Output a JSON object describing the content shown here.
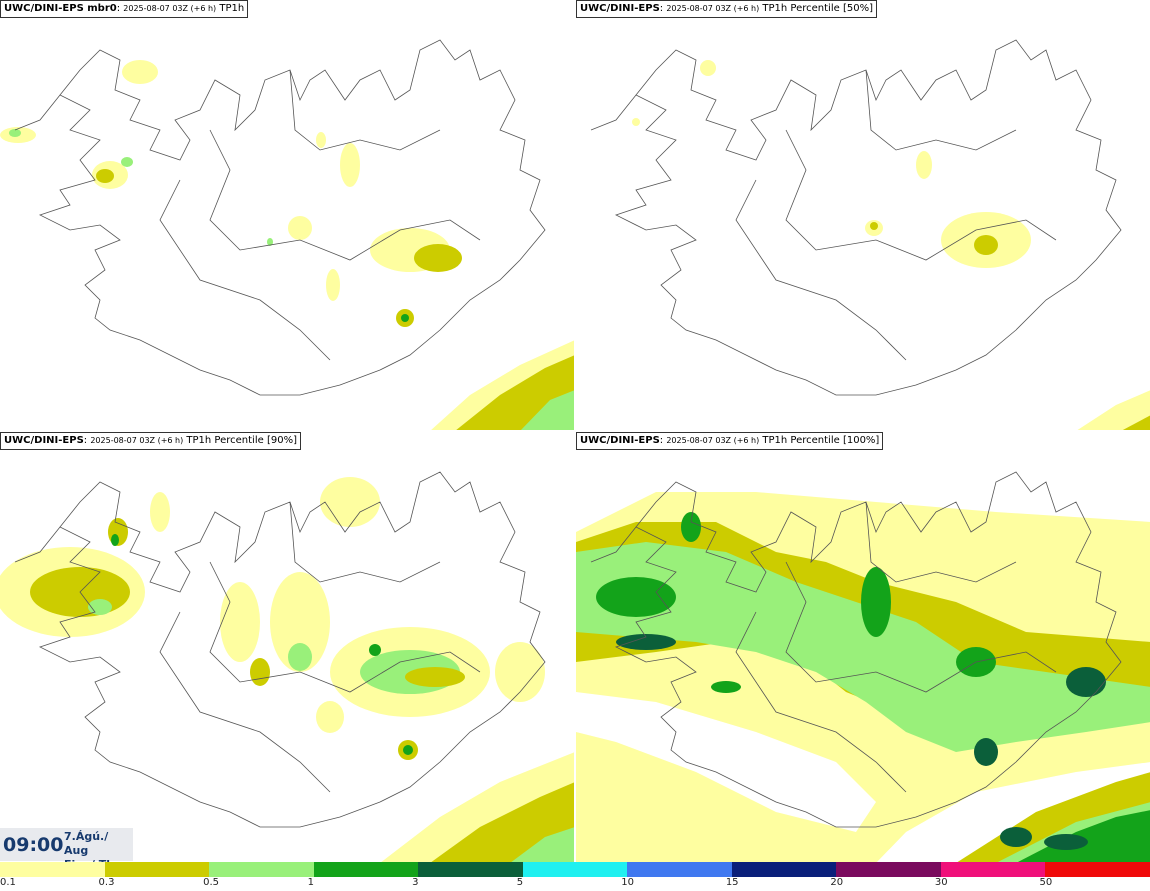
{
  "panels": [
    {
      "model": "UWC/DINI-EPS mbr0",
      "meta": "2025-08-07 03Z (+6 h)",
      "product": "TP1h"
    },
    {
      "model": "UWC/DINI-EPS",
      "meta": "2025-08-07 03Z (+6 h)",
      "product": "TP1h Percentile [50%]"
    },
    {
      "model": "UWC/DINI-EPS",
      "meta": "2025-08-07 03Z (+6 h)",
      "product": "TP1h Percentile [90%]"
    },
    {
      "model": "UWC/DINI-EPS",
      "meta": "2025-08-07 03Z (+6 h)",
      "product": "TP1h Percentile [100%]"
    }
  ],
  "time": "09:00",
  "date_line1": "7.Ágú./ Aug",
  "date_line2": "Fim./ Thu",
  "legend": {
    "colors": [
      "#fefea0",
      "#cccc00",
      "#99f07a",
      "#13a31a",
      "#0b5f3a",
      "#1ff0f0",
      "#3f78f0",
      "#0a1f7a",
      "#7a0a5e",
      "#f0107a",
      "#f00a0a"
    ],
    "labels": [
      "0.1",
      "0.3",
      "0.5",
      "1",
      "3",
      "5",
      "10",
      "15",
      "20",
      "30",
      "50"
    ]
  }
}
